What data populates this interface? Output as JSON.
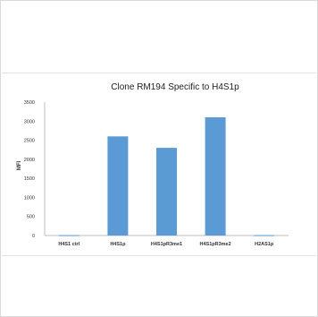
{
  "chart_data": {
    "type": "bar",
    "title": "Clone RM194 Specific to H4S1p",
    "xlabel": "",
    "ylabel": "MFI",
    "categories": [
      "H4S1 ctrl",
      "H4S1p",
      "H4S1pR3me1",
      "H4S1pR3me2",
      "H2AS1p"
    ],
    "values": [
      10,
      2600,
      2300,
      3100,
      10
    ],
    "ylim": [
      0,
      3500
    ],
    "yticks": [
      0,
      500,
      1000,
      1500,
      2000,
      2500,
      3000,
      3500
    ],
    "bar_color": "#5b9bd5",
    "grid": false,
    "legend": "none"
  }
}
